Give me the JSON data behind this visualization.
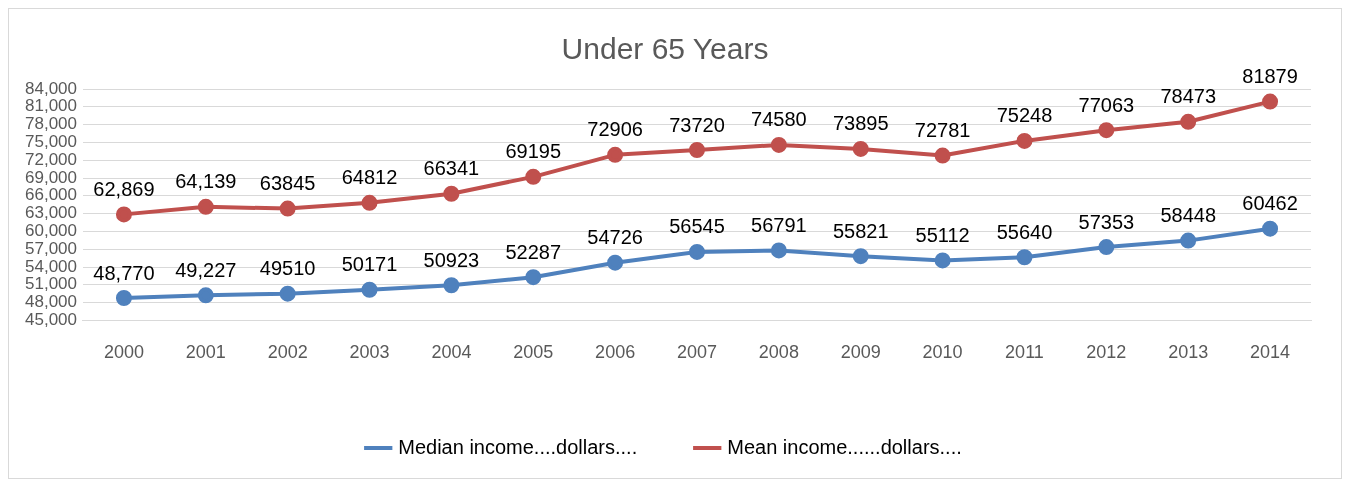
{
  "chart_data": {
    "type": "line",
    "title": "Under 65 Years",
    "categories": [
      "2000",
      "2001",
      "2002",
      "2003",
      "2004",
      "2005",
      "2006",
      "2007",
      "2008",
      "2009",
      "2010",
      "2011",
      "2012",
      "2013",
      "2014"
    ],
    "series": [
      {
        "name": "Median income....dollars....",
        "color": "#4f81bd",
        "values": [
          48770,
          49227,
          49510,
          50171,
          50923,
          52287,
          54726,
          56545,
          56791,
          55821,
          55112,
          55640,
          57353,
          58448,
          60462
        ],
        "value_labels": [
          "48,770",
          "49,227",
          "49510",
          "50171",
          "50923",
          "52287",
          "54726",
          "56545",
          "56791",
          "55821",
          "55112",
          "55640",
          "57353",
          "58448",
          "60462"
        ]
      },
      {
        "name": "Mean income......dollars....",
        "color": "#c0504d",
        "values": [
          62869,
          64139,
          63845,
          64812,
          66341,
          69195,
          72906,
          73720,
          74580,
          73895,
          72781,
          75248,
          77063,
          78473,
          81879
        ],
        "value_labels": [
          "62,869",
          "64,139",
          "63845",
          "64812",
          "66341",
          "69195",
          "72906",
          "73720",
          "74580",
          "73895",
          "72781",
          "75248",
          "77063",
          "78473",
          "81879"
        ]
      }
    ],
    "ylim": [
      45000,
      84000
    ],
    "yticks": [
      {
        "value": 45000,
        "label": "45,000"
      },
      {
        "value": 48000,
        "label": "48,000"
      },
      {
        "value": 51000,
        "label": "51,000"
      },
      {
        "value": 54000,
        "label": "54,000"
      },
      {
        "value": 57000,
        "label": "57,000"
      },
      {
        "value": 60000,
        "label": "60,000"
      },
      {
        "value": 63000,
        "label": "63,000"
      },
      {
        "value": 66000,
        "label": "66,000"
      },
      {
        "value": 69000,
        "label": "69,000"
      },
      {
        "value": 72000,
        "label": "72,000"
      },
      {
        "value": 75000,
        "label": "75,000"
      },
      {
        "value": 78000,
        "label": "78,000"
      },
      {
        "value": 81000,
        "label": "81,000"
      },
      {
        "value": 84000,
        "label": "84,000"
      }
    ],
    "grid": "y",
    "legend": "bottom",
    "marker": "circle",
    "line_style": "solid"
  }
}
